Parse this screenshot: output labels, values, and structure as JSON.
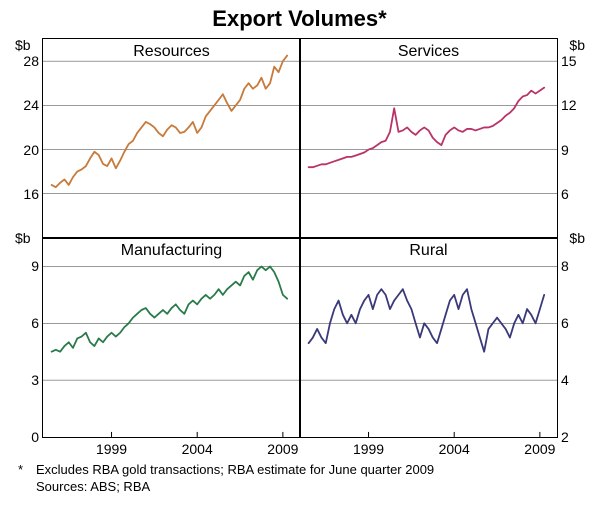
{
  "title": "Export Volumes*",
  "footnote_marker": "*",
  "footnote_text": "Excludes RBA gold transactions; RBA estimate for June quarter 2009",
  "sources_label": "Sources: ABS; RBA",
  "unit_label": "$b",
  "background_color": "#ffffff",
  "border_color": "#000000",
  "font_family": "Arial, Helvetica, sans-serif",
  "title_fontsize": 22,
  "panel_title_fontsize": 16,
  "tick_fontsize": 14,
  "footnote_fontsize": 13,
  "x_range": [
    1995,
    2010
  ],
  "x_ticks": [
    1999,
    2004,
    2009
  ],
  "panels": {
    "resources": {
      "title": "Resources",
      "position": "top-left",
      "color": "#c77a3a",
      "line_width": 1.8,
      "ylim": [
        12,
        30
      ],
      "yticks": [
        16,
        20,
        24,
        28
      ],
      "x": [
        1995.5,
        1995.75,
        1996,
        1996.25,
        1996.5,
        1996.75,
        1997,
        1997.25,
        1997.5,
        1997.75,
        1998,
        1998.25,
        1998.5,
        1998.75,
        1999,
        1999.25,
        1999.5,
        1999.75,
        2000,
        2000.25,
        2000.5,
        2000.75,
        2001,
        2001.25,
        2001.5,
        2001.75,
        2002,
        2002.25,
        2002.5,
        2002.75,
        2003,
        2003.25,
        2003.5,
        2003.75,
        2004,
        2004.25,
        2004.5,
        2004.75,
        2005,
        2005.25,
        2005.5,
        2005.75,
        2006,
        2006.25,
        2006.5,
        2006.75,
        2007,
        2007.25,
        2007.5,
        2007.75,
        2008,
        2008.25,
        2008.5,
        2008.75,
        2009,
        2009.25
      ],
      "y": [
        16.8,
        16.6,
        17.0,
        17.3,
        16.8,
        17.5,
        18.0,
        18.2,
        18.5,
        19.2,
        19.8,
        19.5,
        18.7,
        18.5,
        19.2,
        18.3,
        19.0,
        19.8,
        20.5,
        20.8,
        21.5,
        22.0,
        22.5,
        22.3,
        22.0,
        21.5,
        21.2,
        21.8,
        22.2,
        22.0,
        21.5,
        21.6,
        22.0,
        22.5,
        21.5,
        22.0,
        23.0,
        23.5,
        24.0,
        24.5,
        25.0,
        24.2,
        23.5,
        24.0,
        24.5,
        25.5,
        26.0,
        25.5,
        25.8,
        26.5,
        25.5,
        26.0,
        27.5,
        27.0,
        28.0,
        28.5
      ]
    },
    "services": {
      "title": "Services",
      "position": "top-right",
      "color": "#b83468",
      "line_width": 1.8,
      "ylim": [
        3,
        16.5
      ],
      "yticks": [
        6,
        9,
        12,
        15
      ],
      "x": [
        1995.5,
        1995.75,
        1996,
        1996.25,
        1996.5,
        1996.75,
        1997,
        1997.25,
        1997.5,
        1997.75,
        1998,
        1998.25,
        1998.5,
        1998.75,
        1999,
        1999.25,
        1999.5,
        1999.75,
        2000,
        2000.25,
        2000.5,
        2000.75,
        2001,
        2001.25,
        2001.5,
        2001.75,
        2002,
        2002.25,
        2002.5,
        2002.75,
        2003,
        2003.25,
        2003.5,
        2003.75,
        2004,
        2004.25,
        2004.5,
        2004.75,
        2005,
        2005.25,
        2005.5,
        2005.75,
        2006,
        2006.25,
        2006.5,
        2006.75,
        2007,
        2007.25,
        2007.5,
        2007.75,
        2008,
        2008.25,
        2008.5,
        2008.75,
        2009,
        2009.25
      ],
      "y": [
        7.8,
        7.8,
        7.9,
        8.0,
        8.0,
        8.1,
        8.2,
        8.3,
        8.4,
        8.5,
        8.5,
        8.6,
        8.7,
        8.8,
        9.0,
        9.1,
        9.3,
        9.5,
        9.6,
        10.2,
        11.8,
        10.2,
        10.3,
        10.5,
        10.2,
        10.0,
        10.3,
        10.5,
        10.3,
        9.8,
        9.5,
        9.3,
        10.0,
        10.3,
        10.5,
        10.3,
        10.2,
        10.4,
        10.4,
        10.3,
        10.4,
        10.5,
        10.5,
        10.6,
        10.8,
        11.0,
        11.3,
        11.5,
        11.8,
        12.3,
        12.6,
        12.7,
        13.0,
        12.8,
        13.0,
        13.2
      ]
    },
    "manufacturing": {
      "title": "Manufacturing",
      "position": "bottom-left",
      "color": "#2a7a4a",
      "line_width": 1.8,
      "ylim": [
        0,
        10.5
      ],
      "yticks": [
        0,
        3,
        6,
        9
      ],
      "x": [
        1995.5,
        1995.75,
        1996,
        1996.25,
        1996.5,
        1996.75,
        1997,
        1997.25,
        1997.5,
        1997.75,
        1998,
        1998.25,
        1998.5,
        1998.75,
        1999,
        1999.25,
        1999.5,
        1999.75,
        2000,
        2000.25,
        2000.5,
        2000.75,
        2001,
        2001.25,
        2001.5,
        2001.75,
        2002,
        2002.25,
        2002.5,
        2002.75,
        2003,
        2003.25,
        2003.5,
        2003.75,
        2004,
        2004.25,
        2004.5,
        2004.75,
        2005,
        2005.25,
        2005.5,
        2005.75,
        2006,
        2006.25,
        2006.5,
        2006.75,
        2007,
        2007.25,
        2007.5,
        2007.75,
        2008,
        2008.25,
        2008.5,
        2008.75,
        2009,
        2009.25
      ],
      "y": [
        4.5,
        4.6,
        4.5,
        4.8,
        5.0,
        4.7,
        5.2,
        5.3,
        5.5,
        5.0,
        4.8,
        5.2,
        5.0,
        5.3,
        5.5,
        5.3,
        5.5,
        5.8,
        6.0,
        6.3,
        6.5,
        6.7,
        6.8,
        6.5,
        6.3,
        6.5,
        6.7,
        6.5,
        6.8,
        7.0,
        6.7,
        6.5,
        7.0,
        7.2,
        7.0,
        7.3,
        7.5,
        7.3,
        7.5,
        7.8,
        7.5,
        7.8,
        8.0,
        8.2,
        8.0,
        8.5,
        8.7,
        8.3,
        8.8,
        9.0,
        8.8,
        9.0,
        8.7,
        8.2,
        7.5,
        7.3
      ]
    },
    "rural": {
      "title": "Rural",
      "position": "bottom-right",
      "color": "#3a3a7a",
      "line_width": 1.8,
      "ylim": [
        2,
        9
      ],
      "yticks": [
        2,
        4,
        6,
        8
      ],
      "x": [
        1995.5,
        1995.75,
        1996,
        1996.25,
        1996.5,
        1996.75,
        1997,
        1997.25,
        1997.5,
        1997.75,
        1998,
        1998.25,
        1998.5,
        1998.75,
        1999,
        1999.25,
        1999.5,
        1999.75,
        2000,
        2000.25,
        2000.5,
        2000.75,
        2001,
        2001.25,
        2001.5,
        2001.75,
        2002,
        2002.25,
        2002.5,
        2002.75,
        2003,
        2003.25,
        2003.5,
        2003.75,
        2004,
        2004.25,
        2004.5,
        2004.75,
        2005,
        2005.25,
        2005.5,
        2005.75,
        2006,
        2006.25,
        2006.5,
        2006.75,
        2007,
        2007.25,
        2007.5,
        2007.75,
        2008,
        2008.25,
        2008.5,
        2008.75,
        2009,
        2009.25
      ],
      "y": [
        5.3,
        5.5,
        5.8,
        5.5,
        5.3,
        6.0,
        6.5,
        6.8,
        6.3,
        6.0,
        6.3,
        6.0,
        6.5,
        6.8,
        7.0,
        6.5,
        7.0,
        7.2,
        7.0,
        6.5,
        6.8,
        7.0,
        7.2,
        6.8,
        6.5,
        6.0,
        5.5,
        6.0,
        5.8,
        5.5,
        5.3,
        5.8,
        6.3,
        6.8,
        7.0,
        6.5,
        7.0,
        7.2,
        6.5,
        6.0,
        5.5,
        5.0,
        5.8,
        6.0,
        6.2,
        6.0,
        5.8,
        5.5,
        6.0,
        6.3,
        6.0,
        6.5,
        6.3,
        6.0,
        6.5,
        7.0
      ]
    }
  }
}
